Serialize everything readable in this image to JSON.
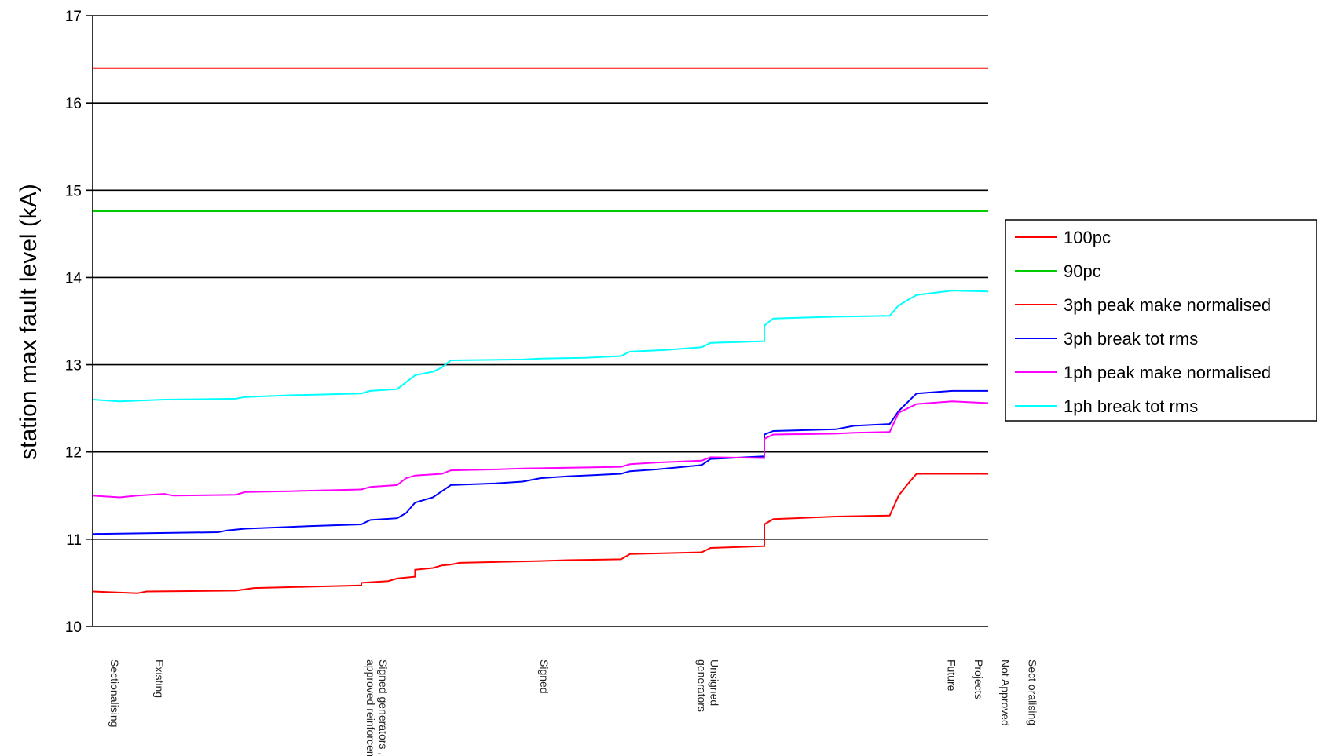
{
  "chart_data": {
    "type": "line",
    "title": "",
    "ylabel": "station max fault level (kA)",
    "xlabel": "",
    "ylim": [
      10,
      17
    ],
    "yticks": [
      "10",
      "11",
      "12",
      "13",
      "14",
      "15",
      "16",
      "17"
    ],
    "grid": true,
    "legend_position": "right",
    "x_categories": [
      {
        "label": "Sectionalising",
        "x": 0.02
      },
      {
        "label": "Existing",
        "x": 0.07
      },
      {
        "label": "Signed generators ,\napproved reinforcements",
        "x": 0.32
      },
      {
        "label": "Signed",
        "x": 0.5
      },
      {
        "label": "Unsigned\ngenerators",
        "x": 0.69
      },
      {
        "label": "Future",
        "x": 0.955
      },
      {
        "label": "Projects",
        "x": 0.985
      },
      {
        "label": "Not Approved",
        "x": 1.015
      },
      {
        "label": "Sect oralising",
        "x": 1.045
      }
    ],
    "series": [
      {
        "name": "100pc",
        "color": "#ff0000",
        "points": [
          [
            0,
            16.4
          ],
          [
            1,
            16.4
          ]
        ]
      },
      {
        "name": "90pc",
        "color": "#00cc00",
        "points": [
          [
            0,
            14.76
          ],
          [
            1,
            14.76
          ]
        ]
      },
      {
        "name": "3ph peak make normalised",
        "color": "#ff0000",
        "points": [
          [
            0,
            10.4
          ],
          [
            0.05,
            10.38
          ],
          [
            0.06,
            10.4
          ],
          [
            0.16,
            10.41
          ],
          [
            0.18,
            10.44
          ],
          [
            0.22,
            10.45
          ],
          [
            0.3,
            10.47
          ],
          [
            0.3,
            10.5
          ],
          [
            0.33,
            10.52
          ],
          [
            0.34,
            10.55
          ],
          [
            0.36,
            10.57
          ],
          [
            0.36,
            10.65
          ],
          [
            0.38,
            10.67
          ],
          [
            0.39,
            10.7
          ],
          [
            0.4,
            10.71
          ],
          [
            0.41,
            10.73
          ],
          [
            0.5,
            10.75
          ],
          [
            0.53,
            10.76
          ],
          [
            0.59,
            10.77
          ],
          [
            0.6,
            10.83
          ],
          [
            0.68,
            10.85
          ],
          [
            0.69,
            10.9
          ],
          [
            0.75,
            10.92
          ],
          [
            0.75,
            11.17
          ],
          [
            0.76,
            11.23
          ],
          [
            0.83,
            11.26
          ],
          [
            0.89,
            11.27
          ],
          [
            0.9,
            11.5
          ],
          [
            0.91,
            11.63
          ],
          [
            0.92,
            11.75
          ],
          [
            1,
            11.75
          ]
        ]
      },
      {
        "name": "3ph break tot rms",
        "color": "#0000ff",
        "points": [
          [
            0,
            11.06
          ],
          [
            0.14,
            11.08
          ],
          [
            0.15,
            11.1
          ],
          [
            0.17,
            11.12
          ],
          [
            0.22,
            11.14
          ],
          [
            0.24,
            11.15
          ],
          [
            0.3,
            11.17
          ],
          [
            0.31,
            11.22
          ],
          [
            0.34,
            11.24
          ],
          [
            0.35,
            11.3
          ],
          [
            0.36,
            11.42
          ],
          [
            0.38,
            11.48
          ],
          [
            0.39,
            11.55
          ],
          [
            0.4,
            11.62
          ],
          [
            0.45,
            11.64
          ],
          [
            0.48,
            11.66
          ],
          [
            0.5,
            11.7
          ],
          [
            0.53,
            11.72
          ],
          [
            0.59,
            11.75
          ],
          [
            0.6,
            11.78
          ],
          [
            0.63,
            11.8
          ],
          [
            0.68,
            11.85
          ],
          [
            0.69,
            11.92
          ],
          [
            0.75,
            11.95
          ],
          [
            0.75,
            12.2
          ],
          [
            0.76,
            12.24
          ],
          [
            0.83,
            12.26
          ],
          [
            0.85,
            12.3
          ],
          [
            0.89,
            12.32
          ],
          [
            0.9,
            12.47
          ],
          [
            0.92,
            12.67
          ],
          [
            0.96,
            12.7
          ],
          [
            1,
            12.7
          ]
        ]
      },
      {
        "name": "1ph peak make normalised",
        "color": "#ff00ff",
        "points": [
          [
            0,
            11.5
          ],
          [
            0.03,
            11.48
          ],
          [
            0.05,
            11.5
          ],
          [
            0.08,
            11.52
          ],
          [
            0.09,
            11.5
          ],
          [
            0.16,
            11.51
          ],
          [
            0.17,
            11.54
          ],
          [
            0.22,
            11.55
          ],
          [
            0.3,
            11.57
          ],
          [
            0.31,
            11.6
          ],
          [
            0.34,
            11.62
          ],
          [
            0.35,
            11.7
          ],
          [
            0.36,
            11.73
          ],
          [
            0.39,
            11.75
          ],
          [
            0.4,
            11.79
          ],
          [
            0.45,
            11.8
          ],
          [
            0.48,
            11.81
          ],
          [
            0.59,
            11.83
          ],
          [
            0.6,
            11.86
          ],
          [
            0.63,
            11.88
          ],
          [
            0.68,
            11.9
          ],
          [
            0.69,
            11.94
          ],
          [
            0.75,
            11.93
          ],
          [
            0.75,
            12.15
          ],
          [
            0.76,
            12.2
          ],
          [
            0.83,
            12.21
          ],
          [
            0.85,
            12.22
          ],
          [
            0.89,
            12.23
          ],
          [
            0.9,
            12.45
          ],
          [
            0.92,
            12.55
          ],
          [
            0.96,
            12.58
          ],
          [
            1,
            12.56
          ]
        ]
      },
      {
        "name": "1ph break tot rms",
        "color": "#00ffff",
        "points": [
          [
            0,
            12.6
          ],
          [
            0.03,
            12.58
          ],
          [
            0.08,
            12.6
          ],
          [
            0.16,
            12.61
          ],
          [
            0.17,
            12.63
          ],
          [
            0.22,
            12.65
          ],
          [
            0.3,
            12.67
          ],
          [
            0.31,
            12.7
          ],
          [
            0.34,
            12.72
          ],
          [
            0.35,
            12.8
          ],
          [
            0.36,
            12.88
          ],
          [
            0.38,
            12.92
          ],
          [
            0.39,
            12.97
          ],
          [
            0.4,
            13.05
          ],
          [
            0.48,
            13.06
          ],
          [
            0.5,
            13.07
          ],
          [
            0.55,
            13.08
          ],
          [
            0.59,
            13.1
          ],
          [
            0.6,
            13.15
          ],
          [
            0.64,
            13.17
          ],
          [
            0.68,
            13.2
          ],
          [
            0.69,
            13.25
          ],
          [
            0.75,
            13.27
          ],
          [
            0.75,
            13.45
          ],
          [
            0.76,
            13.53
          ],
          [
            0.83,
            13.55
          ],
          [
            0.89,
            13.56
          ],
          [
            0.9,
            13.68
          ],
          [
            0.92,
            13.8
          ],
          [
            0.96,
            13.85
          ],
          [
            1,
            13.84
          ]
        ]
      }
    ]
  }
}
